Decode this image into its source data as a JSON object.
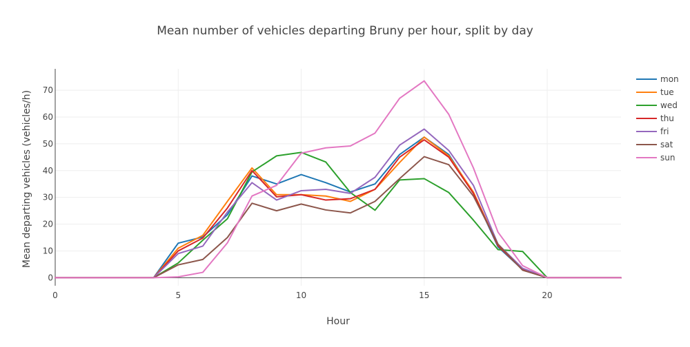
{
  "chart_data": {
    "type": "line",
    "title": "Mean number of vehicles departing Bruny per hour, split by day",
    "xlabel": "Hour",
    "ylabel": "Mean departing vehicles (vehicles/h)",
    "xlim": [
      0,
      23
    ],
    "ylim": [
      -3,
      78
    ],
    "x_ticks": [
      0,
      5,
      10,
      15,
      20
    ],
    "y_ticks": [
      0,
      10,
      20,
      30,
      40,
      50,
      60,
      70
    ],
    "grid": true,
    "legend_position": "top-right",
    "x": [
      0,
      1,
      2,
      3,
      4,
      5,
      6,
      7,
      8,
      9,
      10,
      11,
      12,
      13,
      14,
      15,
      16,
      17,
      18,
      19,
      20,
      21,
      22,
      23
    ],
    "series": [
      {
        "name": "mon",
        "color": "#1f77b4",
        "values": [
          0,
          0,
          0,
          0,
          0,
          12.9,
          15.2,
          23.5,
          38.0,
          35.0,
          38.5,
          35.5,
          32.0,
          35.0,
          46.0,
          52.5,
          46.0,
          31.5,
          11.5,
          3.0,
          0,
          0,
          0,
          0
        ]
      },
      {
        "name": "tue",
        "color": "#ff7f0e",
        "values": [
          0,
          0,
          0,
          0,
          0,
          11.0,
          15.8,
          28.5,
          41.0,
          31.0,
          31.0,
          30.5,
          28.5,
          33.0,
          43.0,
          52.5,
          45.5,
          32.0,
          12.0,
          3.0,
          0,
          0,
          0,
          0
        ]
      },
      {
        "name": "wed",
        "color": "#2ca02c",
        "values": [
          0,
          0,
          0,
          0,
          0,
          5.5,
          14.0,
          22.0,
          39.5,
          45.5,
          46.8,
          43.2,
          31.8,
          25.2,
          36.5,
          37.0,
          31.8,
          21.5,
          10.5,
          9.8,
          0,
          0,
          0,
          0
        ]
      },
      {
        "name": "thu",
        "color": "#d62728",
        "values": [
          0,
          0,
          0,
          0,
          0,
          10.0,
          14.8,
          26.0,
          40.0,
          30.2,
          31.0,
          29.0,
          29.5,
          33.0,
          45.0,
          51.5,
          45.0,
          31.5,
          12.0,
          3.0,
          0,
          0,
          0,
          0
        ]
      },
      {
        "name": "fri",
        "color": "#9467bd",
        "values": [
          0,
          0,
          0,
          0,
          0,
          9.0,
          11.8,
          24.5,
          35.5,
          29.0,
          32.5,
          33.0,
          31.5,
          37.5,
          49.5,
          55.5,
          47.5,
          34.5,
          12.5,
          3.5,
          0,
          0,
          0,
          0
        ]
      },
      {
        "name": "sat",
        "color": "#8c564b",
        "values": [
          0,
          0,
          0,
          0,
          0,
          4.8,
          6.8,
          15.0,
          27.8,
          25.0,
          27.5,
          25.3,
          24.2,
          28.5,
          37.0,
          45.2,
          42.2,
          30.5,
          12.5,
          2.8,
          0,
          0,
          0,
          0
        ]
      },
      {
        "name": "sun",
        "color": "#e377c2",
        "values": [
          0,
          0,
          0,
          0,
          0,
          0.3,
          2.0,
          13.0,
          30.5,
          34.5,
          46.5,
          48.5,
          49.2,
          54.0,
          67.0,
          73.5,
          61.0,
          41.0,
          17.0,
          4.5,
          0,
          0,
          0,
          0
        ]
      }
    ]
  }
}
